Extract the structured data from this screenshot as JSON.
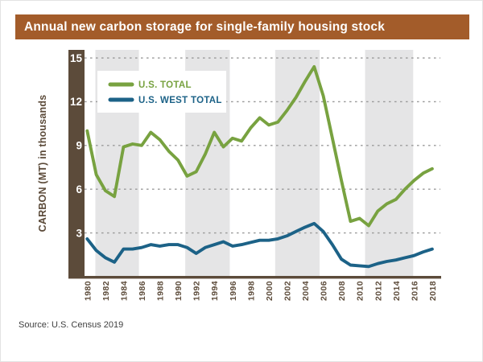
{
  "title": "Annual new carbon storage for single-family housing stock",
  "source": "Source: U.S. Census 2019",
  "colors": {
    "title_bar": "#A35C2A",
    "axis_brown": "#5C4B3A",
    "us_total": "#78A240",
    "us_west_total": "#1C6287",
    "band_gray": "#E5E5E6",
    "gridline_gray": "#9A9A9A",
    "tick_label_white": "#FFFFFF",
    "source_text": "#3E3E3E"
  },
  "legend": {
    "items": [
      {
        "label": "U.S. TOTAL",
        "color": "#78A240"
      },
      {
        "label": "U.S. WEST TOTAL",
        "color": "#1C6287"
      }
    ],
    "position": "top-left inside plot"
  },
  "chart_data": {
    "type": "line",
    "title": "Annual new carbon storage for single-family housing stock",
    "xlabel": "",
    "ylabel": "CARBON (MT) in thousands",
    "x": [
      1980,
      1981,
      1982,
      1983,
      1984,
      1985,
      1986,
      1987,
      1988,
      1989,
      1990,
      1991,
      1992,
      1993,
      1994,
      1995,
      1996,
      1997,
      1998,
      1999,
      2000,
      2001,
      2002,
      2003,
      2004,
      2005,
      2006,
      2007,
      2008,
      2009,
      2010,
      2011,
      2012,
      2013,
      2014,
      2015,
      2016,
      2017,
      2018
    ],
    "series": [
      {
        "name": "U.S. TOTAL",
        "color": "#78A240",
        "values": [
          10.0,
          7.0,
          5.9,
          5.5,
          8.9,
          9.1,
          9.0,
          9.9,
          9.4,
          8.6,
          8.0,
          6.9,
          7.2,
          8.4,
          9.9,
          8.9,
          9.5,
          9.3,
          10.2,
          10.9,
          10.4,
          10.6,
          11.4,
          12.3,
          13.4,
          14.4,
          12.4,
          9.5,
          6.6,
          3.8,
          4.0,
          3.5,
          4.5,
          5.0,
          5.3,
          6.0,
          6.6,
          7.1,
          7.4
        ]
      },
      {
        "name": "U.S. WEST TOTAL",
        "color": "#1C6287",
        "values": [
          2.6,
          1.8,
          1.3,
          1.0,
          1.9,
          1.9,
          2.0,
          2.2,
          2.1,
          2.2,
          2.2,
          2.0,
          1.6,
          2.0,
          2.2,
          2.4,
          2.1,
          2.2,
          2.35,
          2.5,
          2.5,
          2.6,
          2.8,
          3.1,
          3.4,
          3.65,
          3.1,
          2.2,
          1.2,
          0.8,
          0.75,
          0.7,
          0.9,
          1.05,
          1.15,
          1.3,
          1.45,
          1.7,
          1.9
        ]
      }
    ],
    "ylim": [
      0,
      15.5
    ],
    "yticks": [
      3,
      6,
      9,
      12,
      15
    ],
    "xticks": [
      1980,
      1982,
      1984,
      1986,
      1988,
      1990,
      1992,
      1994,
      1996,
      1998,
      2000,
      2002,
      2004,
      2006,
      2008,
      2010,
      2012,
      2014,
      2016,
      2018
    ],
    "xtick_rotation_deg": -90,
    "grid": "dashed horizontal gridlines at yticks",
    "legend_position": "top-left",
    "background_bands_years": [
      [
        1980.9,
        1985.7
      ],
      [
        1990.8,
        1995.7
      ],
      [
        2000.7,
        2005.6
      ],
      [
        2010.6,
        2015.9
      ]
    ]
  }
}
